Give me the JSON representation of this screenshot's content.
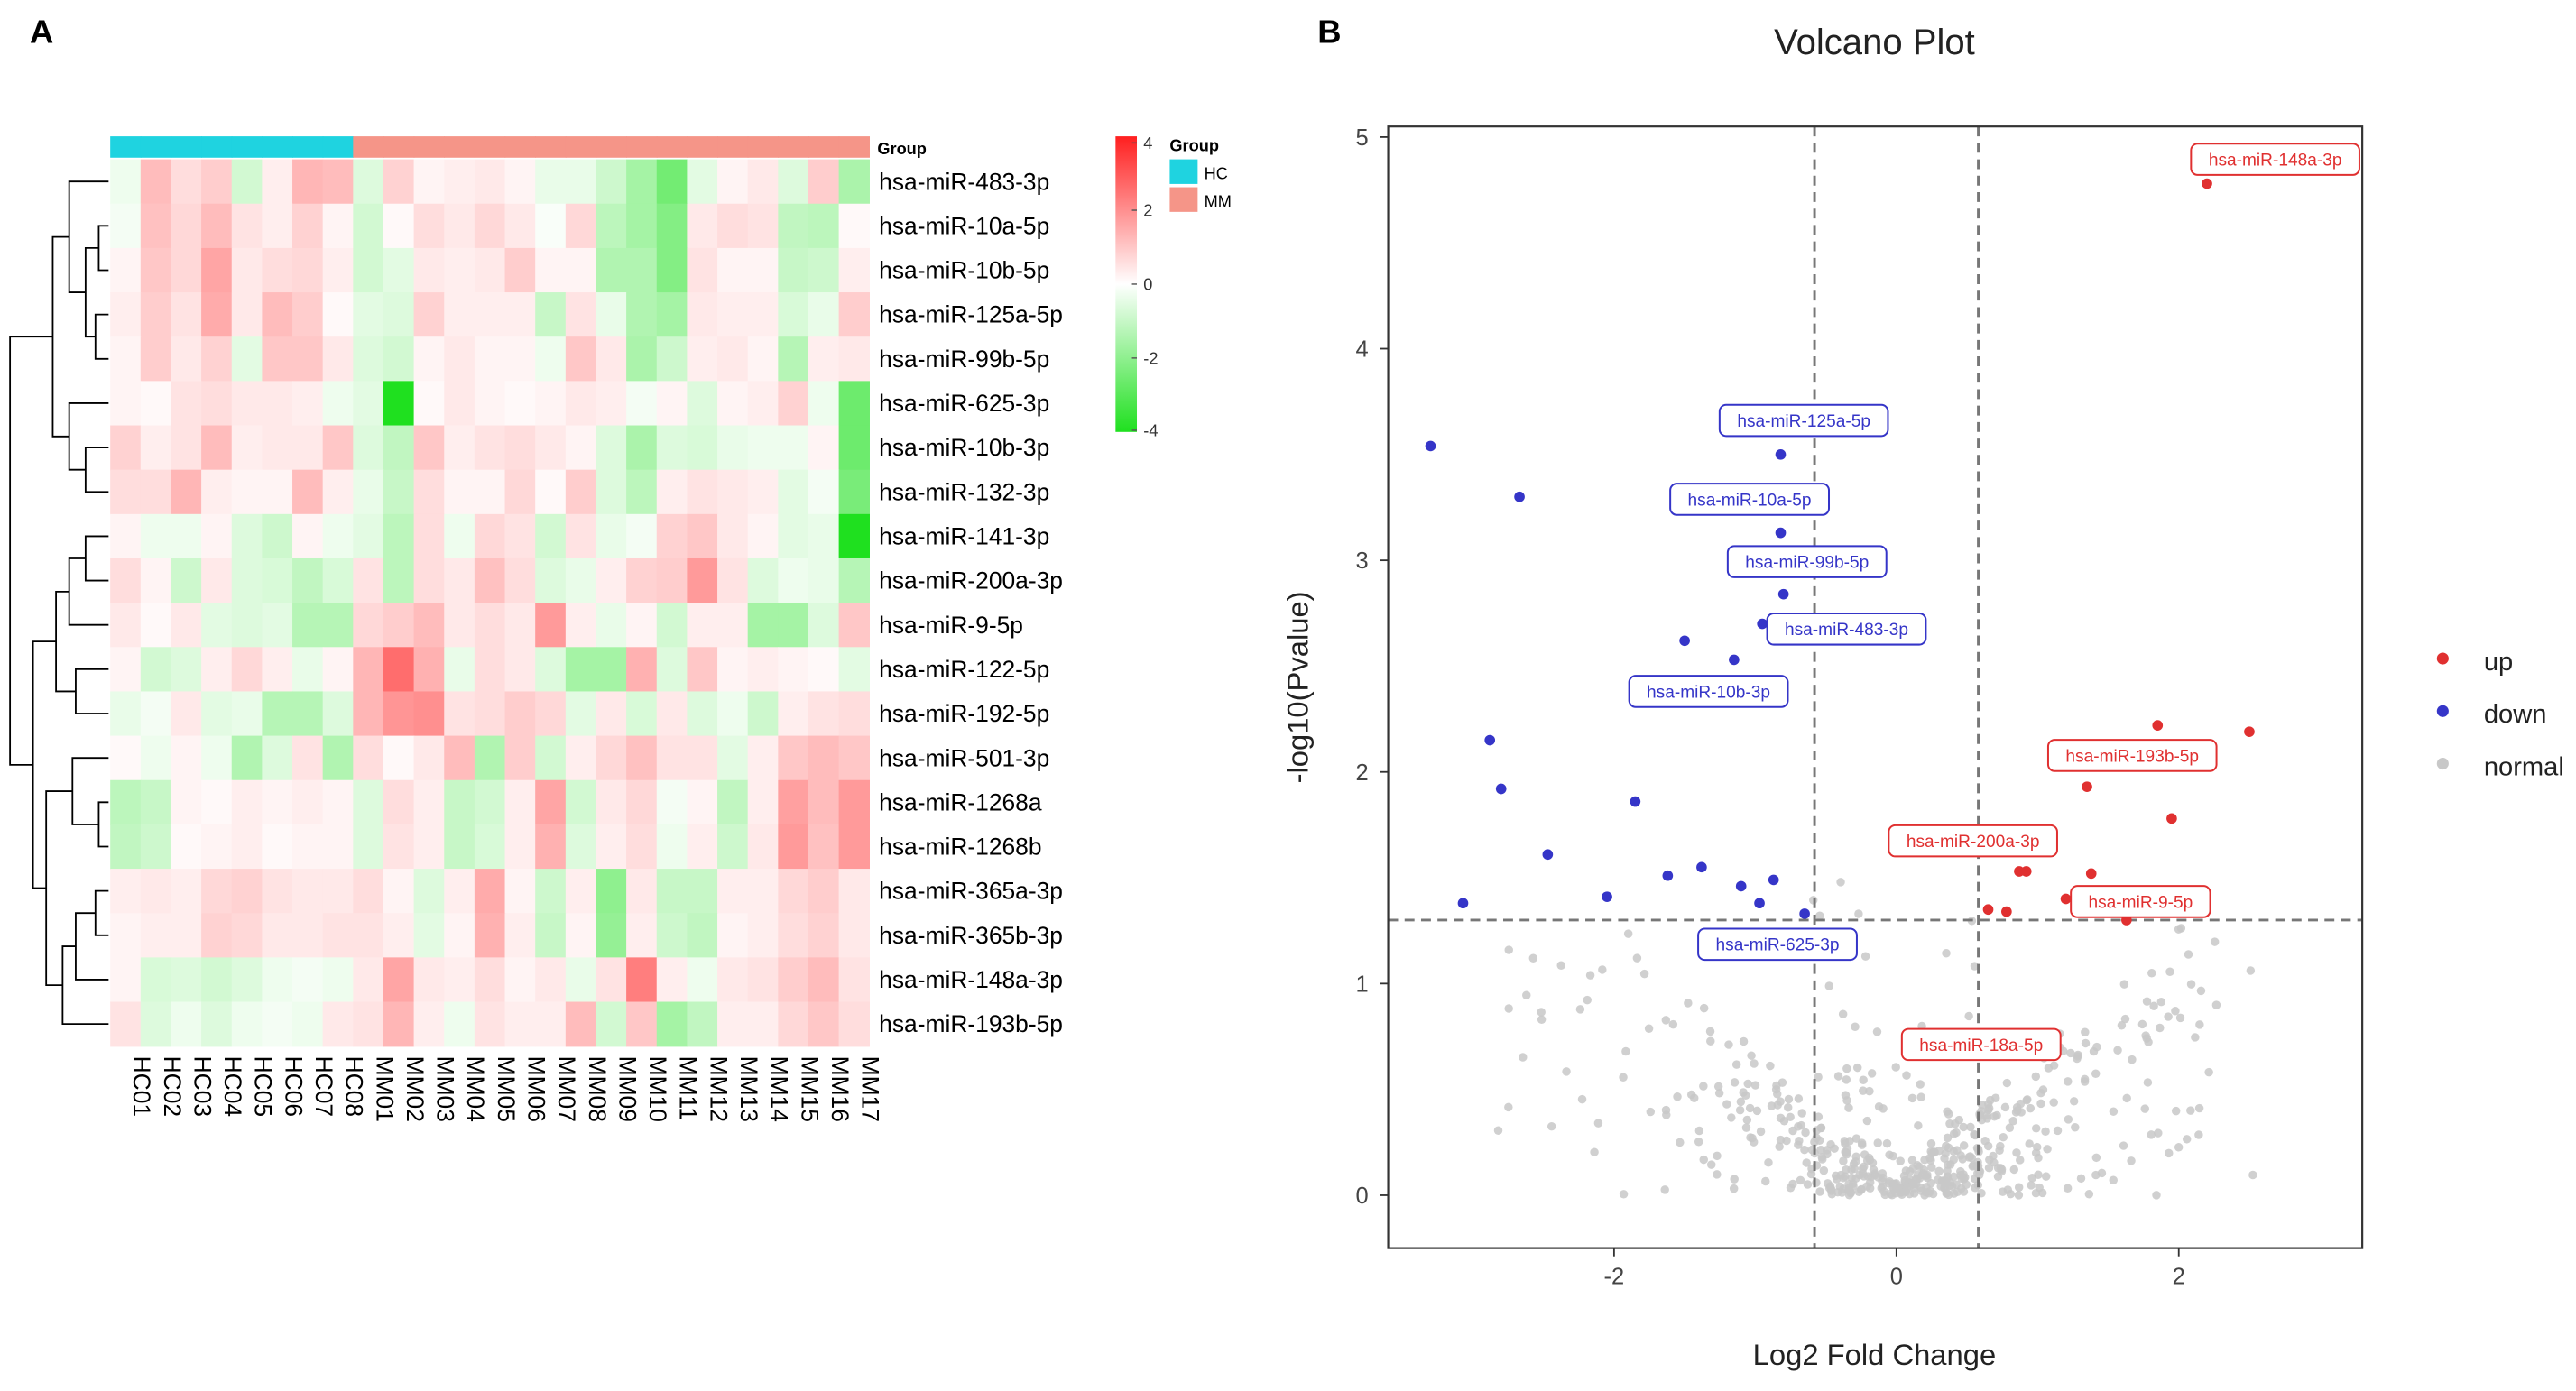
{
  "panel_labels": {
    "a": "A",
    "b": "B"
  },
  "colors": {
    "hc": "#1fd3e0",
    "mm": "#f59588",
    "up": "#e03030",
    "down": "#3535c8",
    "normal": "#c8c8c8",
    "high": "#ff1f1f",
    "mid": "#ffffff",
    "low": "#1fe01f",
    "threshold": "#777777"
  },
  "chart_data": [
    {
      "type": "heatmap",
      "title": "",
      "group_annotation_label": "Group",
      "legend": {
        "title": "Group",
        "entries": [
          {
            "label": "HC",
            "color_key": "hc"
          },
          {
            "label": "MM",
            "color_key": "mm"
          }
        ]
      },
      "color_scale": {
        "min": -4,
        "max": 4,
        "ticks": [
          "4",
          "2",
          "0",
          "-2",
          "-4"
        ]
      },
      "columns": [
        "HC01",
        "HC02",
        "HC03",
        "HC04",
        "HC05",
        "HC06",
        "HC07",
        "HC08",
        "MM01",
        "MM02",
        "MM03",
        "MM04",
        "MM05",
        "MM06",
        "MM07",
        "MM08",
        "MM09",
        "MM10",
        "MM11",
        "MM12",
        "MM13",
        "MM14",
        "MM15",
        "MM16",
        "MM17"
      ],
      "column_groups": [
        "HC",
        "HC",
        "HC",
        "HC",
        "HC",
        "HC",
        "HC",
        "HC",
        "MM",
        "MM",
        "MM",
        "MM",
        "MM",
        "MM",
        "MM",
        "MM",
        "MM",
        "MM",
        "MM",
        "MM",
        "MM",
        "MM",
        "MM",
        "MM",
        "MM"
      ],
      "rows": [
        "hsa-miR-483-3p",
        "hsa-miR-10a-5p",
        "hsa-miR-10b-5p",
        "hsa-miR-125a-5p",
        "hsa-miR-99b-5p",
        "hsa-miR-625-3p",
        "hsa-miR-10b-3p",
        "hsa-miR-132-3p",
        "hsa-miR-141-3p",
        "hsa-miR-200a-3p",
        "hsa-miR-9-5p",
        "hsa-miR-122-5p",
        "hsa-miR-192-5p",
        "hsa-miR-501-3p",
        "hsa-miR-1268a",
        "hsa-miR-1268b",
        "hsa-miR-365a-3p",
        "hsa-miR-365b-3p",
        "hsa-miR-148a-3p",
        "hsa-miR-193b-5p"
      ],
      "values": [
        [
          -0.3,
          1.2,
          0.6,
          0.9,
          -0.8,
          0.3,
          1.3,
          1.2,
          -0.6,
          0.8,
          0.2,
          0.3,
          0.4,
          0.2,
          -0.4,
          -0.4,
          -0.9,
          -1.6,
          -2.5,
          -0.5,
          0.2,
          0.4,
          -0.6,
          0.9,
          -1.5
        ],
        [
          -0.2,
          1.1,
          0.7,
          1.2,
          0.5,
          0.3,
          0.8,
          0.2,
          -0.8,
          0.1,
          0.6,
          0.4,
          0.7,
          0.4,
          -0.1,
          0.7,
          -1.2,
          -1.6,
          -2.2,
          0.4,
          0.6,
          0.5,
          -1.1,
          -1.2,
          0.1
        ],
        [
          0.2,
          1.0,
          0.7,
          1.6,
          0.4,
          0.6,
          0.7,
          0.3,
          -0.8,
          -0.5,
          0.4,
          0.3,
          0.4,
          0.9,
          0.2,
          0.2,
          -1.4,
          -1.4,
          -2.2,
          0.5,
          0.2,
          0.2,
          -1.0,
          -0.9,
          0.3
        ],
        [
          0.3,
          0.9,
          0.5,
          1.5,
          0.4,
          1.2,
          0.9,
          0.1,
          -0.5,
          -0.6,
          0.8,
          0.3,
          0.3,
          0.3,
          -1.0,
          0.5,
          -0.4,
          -1.4,
          -1.6,
          0.4,
          0.3,
          0.3,
          -0.7,
          -0.4,
          0.9
        ],
        [
          0.2,
          0.9,
          0.4,
          0.8,
          -0.5,
          1.0,
          1.0,
          0.4,
          -0.6,
          -0.8,
          0.2,
          0.4,
          0.2,
          0.2,
          -0.3,
          1.0,
          0.4,
          -1.5,
          -0.9,
          0.3,
          0.4,
          0.2,
          -1.3,
          0.3,
          0.4
        ],
        [
          0.2,
          0.1,
          0.5,
          0.6,
          0.4,
          0.4,
          0.3,
          -0.3,
          -0.5,
          -4.0,
          0.1,
          0.4,
          0.2,
          0.1,
          0.2,
          0.4,
          0.3,
          -0.2,
          0.2,
          -0.6,
          0.2,
          0.3,
          0.8,
          -0.3,
          -2.6
        ],
        [
          0.8,
          0.3,
          0.5,
          1.2,
          0.3,
          0.4,
          0.4,
          1.0,
          -0.6,
          -1.1,
          1.0,
          0.3,
          0.5,
          0.6,
          0.4,
          0.2,
          -0.6,
          -1.5,
          -0.6,
          -0.7,
          -0.4,
          -0.3,
          -0.3,
          0.2,
          -2.6
        ],
        [
          0.6,
          0.6,
          1.3,
          0.3,
          0.2,
          0.2,
          1.2,
          0.3,
          -0.4,
          -1.0,
          0.6,
          0.2,
          0.2,
          0.7,
          0.1,
          0.9,
          -0.6,
          -1.2,
          0.3,
          0.5,
          0.4,
          0.3,
          -0.5,
          -0.2,
          -2.4
        ],
        [
          0.2,
          -0.3,
          -0.3,
          0.2,
          -0.6,
          -0.9,
          0.2,
          -0.3,
          -0.5,
          -1.2,
          0.6,
          -0.3,
          0.7,
          0.5,
          -0.8,
          0.5,
          -0.4,
          -0.2,
          0.8,
          1.0,
          0.4,
          0.2,
          -0.5,
          -0.4,
          -4.0
        ],
        [
          0.6,
          0.2,
          -0.9,
          0.4,
          -0.6,
          -0.7,
          -1.1,
          -0.7,
          0.5,
          -1.2,
          0.6,
          0.4,
          1.1,
          0.6,
          -0.6,
          -0.4,
          0.3,
          0.8,
          0.9,
          1.8,
          0.5,
          -0.6,
          -0.3,
          -0.4,
          -1.3
        ],
        [
          0.4,
          0.1,
          0.4,
          -0.5,
          -0.6,
          -0.5,
          -1.3,
          -1.3,
          0.7,
          0.9,
          1.2,
          0.4,
          0.6,
          0.4,
          1.8,
          0.3,
          -0.4,
          0.2,
          -0.8,
          0.3,
          0.3,
          -1.6,
          -1.6,
          -0.6,
          1.0
        ],
        [
          0.2,
          -0.8,
          -0.6,
          0.3,
          0.7,
          0.3,
          -0.4,
          0.2,
          1.3,
          2.6,
          1.4,
          -0.4,
          0.6,
          0.4,
          -0.6,
          -1.6,
          -1.6,
          1.4,
          -0.6,
          1.0,
          0.2,
          0.3,
          0.2,
          0.1,
          -0.5
        ],
        [
          -0.4,
          -0.2,
          0.4,
          -0.5,
          -0.4,
          -1.3,
          -1.3,
          -0.6,
          1.3,
          1.9,
          2.0,
          0.5,
          0.6,
          0.9,
          0.7,
          -0.5,
          0.4,
          -0.7,
          0.4,
          -0.6,
          -0.3,
          -0.9,
          0.3,
          0.5,
          0.6
        ],
        [
          0.1,
          -0.3,
          0.2,
          -0.3,
          -1.4,
          -0.6,
          0.5,
          -1.4,
          0.6,
          0.1,
          0.4,
          1.2,
          -1.4,
          0.9,
          -0.8,
          0.3,
          0.7,
          1.1,
          0.5,
          0.5,
          -0.5,
          0.3,
          1.0,
          1.2,
          1.0
        ],
        [
          -1.2,
          -1.0,
          0.2,
          0.1,
          0.3,
          0.2,
          0.3,
          0.2,
          -0.6,
          0.6,
          0.3,
          -1.0,
          -0.8,
          0.3,
          1.6,
          -0.8,
          0.4,
          0.7,
          -0.2,
          0.2,
          -1.1,
          0.3,
          1.7,
          1.2,
          1.8
        ],
        [
          -1.1,
          -0.9,
          0.1,
          0.2,
          0.3,
          0.1,
          0.2,
          0.2,
          -0.6,
          0.5,
          0.3,
          -1.0,
          -0.7,
          0.3,
          1.4,
          -0.6,
          0.3,
          0.6,
          -0.3,
          0.3,
          -0.9,
          0.4,
          1.8,
          1.1,
          1.8
        ],
        [
          0.3,
          0.4,
          0.3,
          0.7,
          0.8,
          0.5,
          0.4,
          0.4,
          0.6,
          0.2,
          -0.6,
          0.3,
          1.5,
          0.2,
          -0.9,
          0.3,
          -2.0,
          0.4,
          -1.0,
          -1.0,
          0.3,
          0.3,
          0.7,
          0.9,
          0.4
        ],
        [
          0.2,
          0.3,
          0.3,
          0.8,
          0.7,
          0.4,
          0.4,
          0.5,
          0.5,
          0.3,
          -0.5,
          0.2,
          1.4,
          0.3,
          -1.0,
          0.2,
          -1.9,
          0.3,
          -0.9,
          -1.1,
          0.2,
          0.3,
          0.6,
          0.8,
          0.4
        ],
        [
          0.2,
          -0.7,
          -0.6,
          -0.8,
          -0.6,
          -0.3,
          -0.2,
          -0.3,
          0.4,
          1.6,
          0.4,
          0.3,
          0.6,
          0.2,
          0.4,
          -0.4,
          0.5,
          2.3,
          0.3,
          -0.3,
          0.4,
          0.5,
          0.9,
          1.2,
          0.5
        ],
        [
          0.5,
          -0.6,
          -0.3,
          -0.6,
          -0.3,
          -0.2,
          -0.3,
          0.4,
          0.5,
          1.3,
          0.3,
          -0.3,
          0.5,
          0.3,
          0.3,
          1.2,
          -0.8,
          1.0,
          -1.6,
          -1.1,
          0.3,
          0.3,
          0.7,
          1.0,
          0.6
        ]
      ]
    },
    {
      "type": "scatter",
      "title": "Volcano Plot",
      "xlabel": "Log2 Fold Change",
      "ylabel": "-log10(Pvalue)",
      "xlim": [
        -3.6,
        3.3
      ],
      "ylim": [
        -0.25,
        5.05
      ],
      "xticks": [
        -2,
        0,
        2
      ],
      "yticks": [
        0,
        1,
        2,
        3,
        4,
        5
      ],
      "thresholds": {
        "x": [
          -0.58,
          0.58
        ],
        "y": 1.3
      },
      "legend": {
        "entries": [
          {
            "label": "up",
            "color_key": "up"
          },
          {
            "label": "down",
            "color_key": "down"
          },
          {
            "label": "normal",
            "color_key": "normal"
          }
        ]
      },
      "up": [
        [
          2.2,
          4.78
        ],
        [
          1.85,
          2.22
        ],
        [
          2.5,
          2.19
        ],
        [
          1.35,
          1.93
        ],
        [
          1.95,
          1.78
        ],
        [
          0.87,
          1.53
        ],
        [
          0.92,
          1.53
        ],
        [
          1.38,
          1.52
        ],
        [
          1.2,
          1.4
        ],
        [
          0.65,
          1.35
        ],
        [
          0.78,
          1.34
        ],
        [
          1.63,
          1.3
        ]
      ],
      "down": [
        [
          -3.3,
          3.54
        ],
        [
          -2.67,
          3.3
        ],
        [
          -0.82,
          3.5
        ],
        [
          -0.82,
          3.13
        ],
        [
          -0.8,
          2.84
        ],
        [
          -0.95,
          2.7
        ],
        [
          -1.5,
          2.62
        ],
        [
          -1.15,
          2.53
        ],
        [
          -2.88,
          2.15
        ],
        [
          -2.8,
          1.92
        ],
        [
          -1.85,
          1.86
        ],
        [
          -2.47,
          1.61
        ],
        [
          -1.38,
          1.55
        ],
        [
          -1.62,
          1.51
        ],
        [
          -0.87,
          1.49
        ],
        [
          -1.1,
          1.46
        ],
        [
          -0.97,
          1.38
        ],
        [
          -2.05,
          1.41
        ],
        [
          -3.07,
          1.38
        ],
        [
          -0.65,
          1.33
        ]
      ],
      "annotations": [
        {
          "label": "hsa-miR-148a-3p",
          "group": "up",
          "x": 2.2,
          "y": 4.78
        },
        {
          "label": "hsa-miR-125a-5p",
          "group": "down",
          "x": -0.82,
          "y": 3.5
        },
        {
          "label": "hsa-miR-10a-5p",
          "group": "down",
          "x": -0.82,
          "y": 3.13
        },
        {
          "label": "hsa-miR-99b-5p",
          "group": "down",
          "x": -0.8,
          "y": 2.84
        },
        {
          "label": "hsa-miR-483-3p",
          "group": "down",
          "x": -0.95,
          "y": 2.7
        },
        {
          "label": "hsa-miR-10b-3p",
          "group": "down",
          "x": -1.15,
          "y": 2.53
        },
        {
          "label": "hsa-miR-193b-5p",
          "group": "up",
          "x": 1.85,
          "y": 2.22
        },
        {
          "label": "hsa-miR-200a-3p",
          "group": "up",
          "x": 0.9,
          "y": 1.53
        },
        {
          "label": "hsa-miR-9-5p",
          "group": "up",
          "x": 1.35,
          "y": 1.52
        },
        {
          "label": "hsa-miR-625-3p",
          "group": "down",
          "x": -0.65,
          "y": 1.33
        },
        {
          "label": "hsa-miR-18a-5p",
          "group": "up",
          "x": 0.78,
          "y": 1.34
        }
      ]
    }
  ]
}
